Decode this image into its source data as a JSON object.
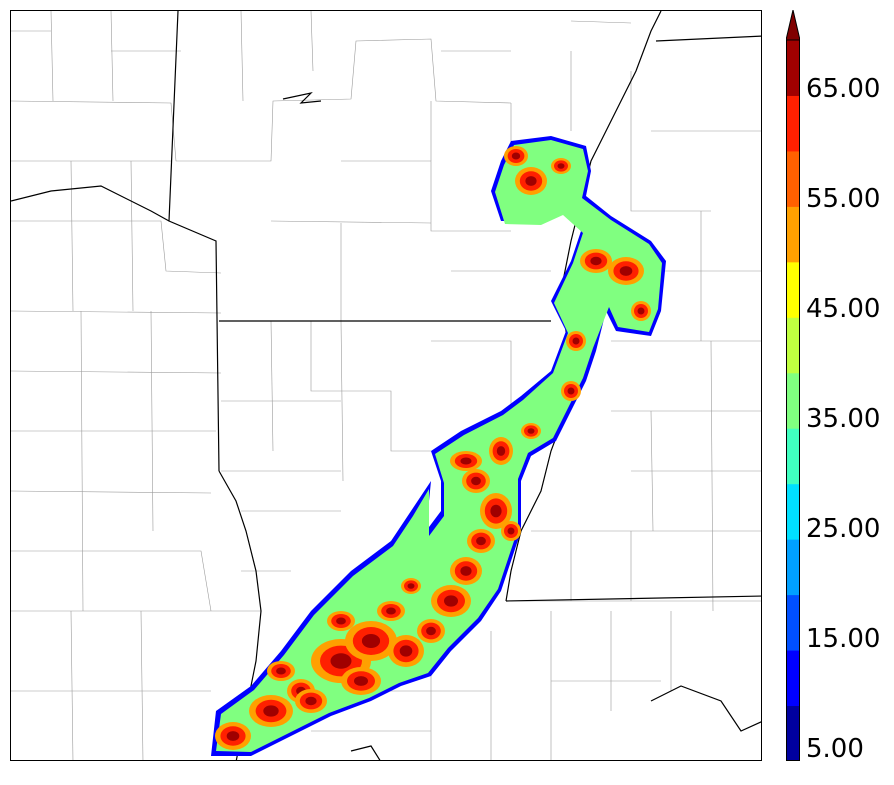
{
  "colorbar": {
    "labels": [
      "5.00",
      "15.00",
      "25.00",
      "35.00",
      "45.00",
      "55.00",
      "65.00"
    ],
    "colors": [
      "#00009f",
      "#0000ff",
      "#0050ff",
      "#00a0ff",
      "#00e0ff",
      "#40ffc0",
      "#80ff80",
      "#c0ff40",
      "#ffff00",
      "#ffa000",
      "#ff6000",
      "#ff2000",
      "#a00000",
      "#800000"
    ]
  },
  "map": {
    "fill_outer": "#80ff80",
    "fill_edge": "#0000ff",
    "fill_mid": "#ffa000",
    "fill_core": "#ff2000",
    "fill_peak": "#a00000",
    "county_line_color": "#888888",
    "state_line_color": "#000000"
  }
}
